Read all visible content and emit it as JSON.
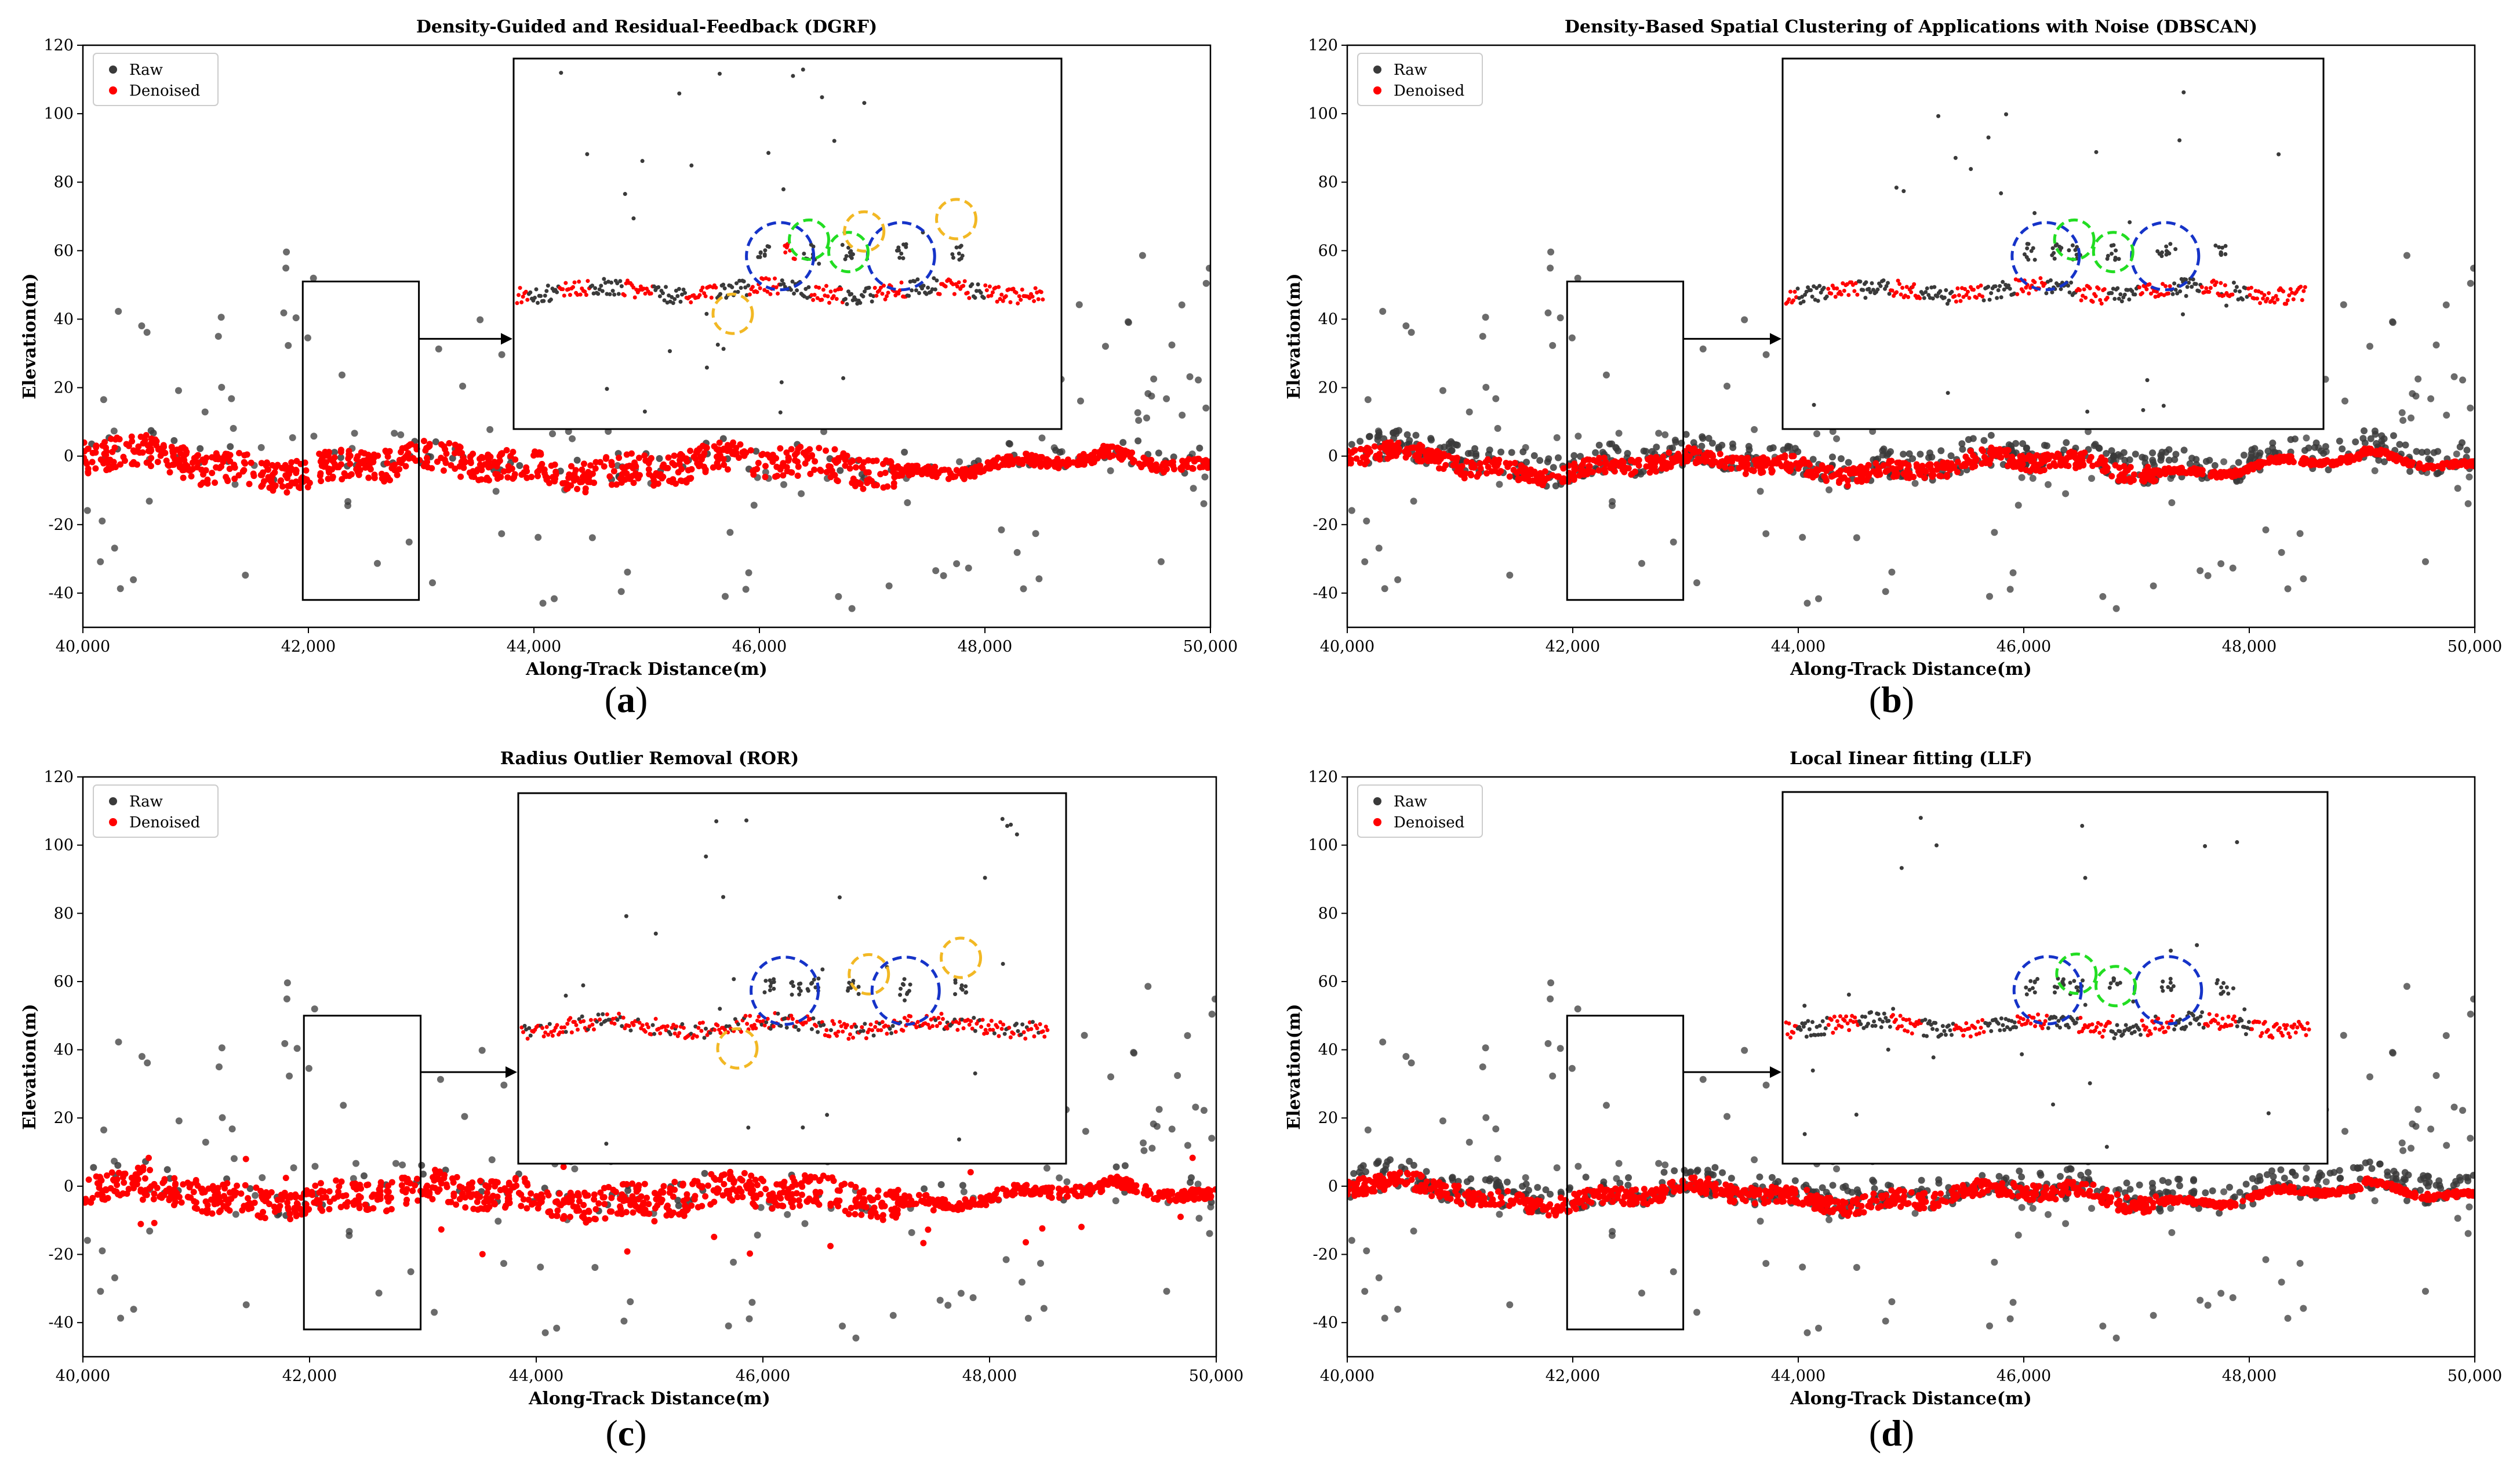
{
  "legend": {
    "raw": "Raw",
    "denoised": "Denoised"
  },
  "colors": {
    "raw": "#3a3a3a",
    "denoised": "#ff0000",
    "blue": "#1533c8",
    "green": "#22dd22",
    "orange": "#f2b824"
  },
  "panel_labels": [
    "a",
    "b",
    "c",
    "d"
  ],
  "chart_data": [
    {
      "type": "scatter",
      "title": "Density-Guided and Residual-Feedback (DGRF)",
      "xlabel": "Along-Track Distance(m)",
      "ylabel": "Elevation(m)",
      "xlim": [
        40000,
        50000
      ],
      "ylim": [
        -50,
        120
      ],
      "xticks": [
        "40,000",
        "42,000",
        "44,000",
        "46,000",
        "48,000",
        "50,000"
      ],
      "yticks": [
        "-40",
        "-20",
        "0",
        "20",
        "40",
        "60",
        "80",
        "100",
        "120"
      ],
      "legend_position": "top-left",
      "grid": false,
      "series": [
        {
          "name": "Raw"
        },
        {
          "name": "Denoised"
        }
      ],
      "zoom_box": {
        "x": [
          41950,
          42980
        ],
        "y": [
          -42,
          51
        ]
      },
      "inset_elevation_range": [
        20,
        110
      ],
      "noise_removal": "good",
      "circles": [
        {
          "color": "blue",
          "x": 45000,
          "y": 62
        },
        {
          "color": "blue",
          "x": 47300,
          "y": 62
        },
        {
          "color": "green",
          "x": 45550,
          "y": 66
        },
        {
          "color": "green",
          "x": 46300,
          "y": 63
        },
        {
          "color": "orange",
          "x": 44100,
          "y": 48
        },
        {
          "color": "orange",
          "x": 46600,
          "y": 68
        },
        {
          "color": "orange",
          "x": 48350,
          "y": 71
        }
      ]
    },
    {
      "type": "scatter",
      "title": "Density-Based Spatial Clustering of Applications with Noise (DBSCAN)",
      "xlabel": "Along-Track Distance(m)",
      "ylabel": "Elevation(m)",
      "xlim": [
        40000,
        50000
      ],
      "ylim": [
        -50,
        120
      ],
      "xticks": [
        "40,000",
        "42,000",
        "44,000",
        "46,000",
        "48,000",
        "50,000"
      ],
      "yticks": [
        "-40",
        "-20",
        "0",
        "20",
        "40",
        "60",
        "80",
        "100",
        "120"
      ],
      "legend_position": "top-left",
      "grid": false,
      "series": [
        {
          "name": "Raw"
        },
        {
          "name": "Denoised"
        }
      ],
      "zoom_box": {
        "x": [
          41950,
          42980
        ],
        "y": [
          -42,
          51
        ]
      },
      "inset_elevation_range": [
        20,
        110
      ],
      "noise_removal": "over",
      "circles": [
        {
          "color": "blue",
          "x": 45000,
          "y": 62
        },
        {
          "color": "blue",
          "x": 47300,
          "y": 62
        },
        {
          "color": "green",
          "x": 45550,
          "y": 66
        },
        {
          "color": "green",
          "x": 46300,
          "y": 63
        }
      ]
    },
    {
      "type": "scatter",
      "title": "Radius Outlier Removal (ROR)",
      "xlabel": "Along-Track Distance(m)",
      "ylabel": "Elevation(m)",
      "xlim": [
        40000,
        50000
      ],
      "ylim": [
        -50,
        120
      ],
      "xticks": [
        "40,000",
        "42,000",
        "44,000",
        "46,000",
        "48,000",
        "50,000"
      ],
      "yticks": [
        "-40",
        "-20",
        "0",
        "20",
        "40",
        "60",
        "80",
        "100",
        "120"
      ],
      "legend_position": "top-left",
      "grid": false,
      "series": [
        {
          "name": "Raw"
        },
        {
          "name": "Denoised"
        }
      ],
      "zoom_box": {
        "x": [
          41950,
          42980
        ],
        "y": [
          -42,
          50
        ]
      },
      "inset_elevation_range": [
        20,
        110
      ],
      "noise_removal": "under",
      "circles": [
        {
          "color": "blue",
          "x": 45000,
          "y": 62
        },
        {
          "color": "blue",
          "x": 47300,
          "y": 62
        },
        {
          "color": "orange",
          "x": 44100,
          "y": 48
        },
        {
          "color": "orange",
          "x": 46600,
          "y": 66
        },
        {
          "color": "orange",
          "x": 48350,
          "y": 70
        }
      ]
    },
    {
      "type": "scatter",
      "title": "Local Iinear fitting (LLF)",
      "xlabel": "Along-Track Distance(m)",
      "ylabel": "Elevation(m)",
      "xlim": [
        40000,
        50000
      ],
      "ylim": [
        -50,
        120
      ],
      "xticks": [
        "40,000",
        "42,000",
        "44,000",
        "46,000",
        "48,000",
        "50,000"
      ],
      "yticks": [
        "-40",
        "-20",
        "0",
        "20",
        "40",
        "60",
        "80",
        "100",
        "120"
      ],
      "legend_position": "top-left",
      "grid": false,
      "series": [
        {
          "name": "Raw"
        },
        {
          "name": "Denoised"
        }
      ],
      "zoom_box": {
        "x": [
          41950,
          42980
        ],
        "y": [
          -42,
          50
        ]
      },
      "inset_elevation_range": [
        20,
        110
      ],
      "noise_removal": "over",
      "circles": [
        {
          "color": "blue",
          "x": 45000,
          "y": 62
        },
        {
          "color": "blue",
          "x": 47300,
          "y": 62
        },
        {
          "color": "green",
          "x": 45550,
          "y": 66
        },
        {
          "color": "green",
          "x": 46300,
          "y": 63
        }
      ]
    }
  ]
}
